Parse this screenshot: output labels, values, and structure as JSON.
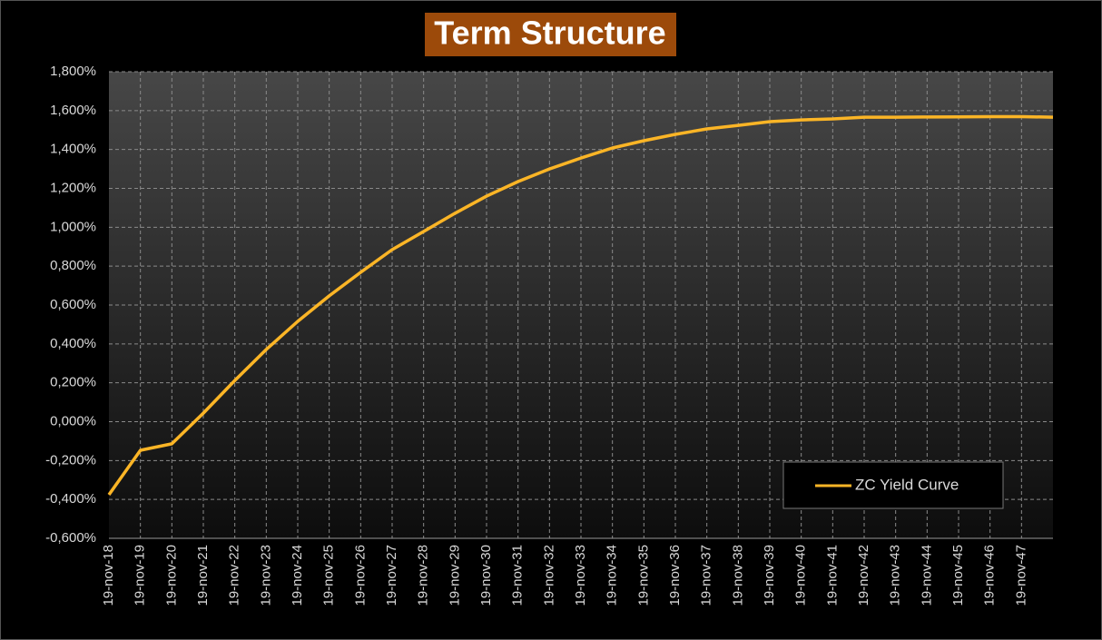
{
  "chart_data": {
    "type": "line",
    "title": "Term Structure",
    "categories": [
      "19-nov-18",
      "19-nov-19",
      "19-nov-20",
      "19-nov-21",
      "19-nov-22",
      "19-nov-23",
      "19-nov-24",
      "19-nov-25",
      "19-nov-26",
      "19-nov-27",
      "19-nov-28",
      "19-nov-29",
      "19-nov-30",
      "19-nov-31",
      "19-nov-32",
      "19-nov-33",
      "19-nov-34",
      "19-nov-35",
      "19-nov-36",
      "19-nov-37",
      "19-nov-38",
      "19-nov-39",
      "19-nov-40",
      "19-nov-41",
      "19-nov-42",
      "19-nov-43",
      "19-nov-44",
      "19-nov-45",
      "19-nov-46",
      "19-nov-47",
      null
    ],
    "series": [
      {
        "name": "ZC Yield Curve",
        "color": "#fbb526",
        "values": [
          -0.376,
          -0.147,
          -0.114,
          0.044,
          0.212,
          0.371,
          0.516,
          0.647,
          0.768,
          0.885,
          0.978,
          1.072,
          1.16,
          1.235,
          1.3,
          1.356,
          1.408,
          1.445,
          1.478,
          1.506,
          1.524,
          1.543,
          1.552,
          1.557,
          1.566,
          1.566,
          1.567,
          1.568,
          1.569,
          1.569,
          1.566
        ]
      }
    ],
    "ylim": [
      -0.6,
      1.8
    ],
    "yticks": [
      {
        "value": -0.6,
        "label": "-0,600%"
      },
      {
        "value": -0.4,
        "label": "-0,400%"
      },
      {
        "value": -0.2,
        "label": "-0,200%"
      },
      {
        "value": 0,
        "label": "0,000%"
      },
      {
        "value": 0.2,
        "label": "0,200%"
      },
      {
        "value": 0.4,
        "label": "0,400%"
      },
      {
        "value": 0.6,
        "label": "0,600%"
      },
      {
        "value": 0.8,
        "label": "0,800%"
      },
      {
        "value": 1.0,
        "label": "1,000%"
      },
      {
        "value": 1.2,
        "label": "1,200%"
      },
      {
        "value": 1.4,
        "label": "1,400%"
      },
      {
        "value": 1.6,
        "label": "1,600%"
      },
      {
        "value": 1.8,
        "label": "1,800%"
      }
    ],
    "grid": true
  }
}
